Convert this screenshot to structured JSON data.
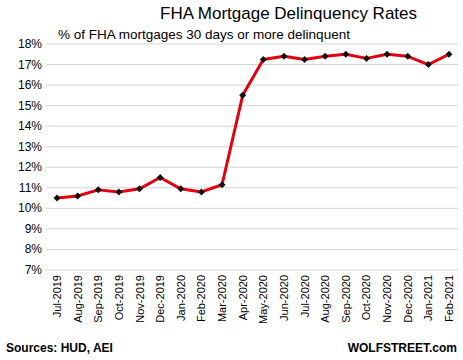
{
  "chart_data": {
    "type": "line",
    "title": "FHA Mortgage Delinquency Rates",
    "subtitle": "% of FHA mortgages 30 days or more delinquent",
    "categories": [
      "Jul-2019",
      "Aug-2019",
      "Sep-2019",
      "Oct-2019",
      "Nov-2019",
      "Dec-2019",
      "Jan-2020",
      "Feb-2020",
      "Mar-2020",
      "Apr-2020",
      "May-2020",
      "Jun-2020",
      "Jul-2020",
      "Aug-2020",
      "Sep-2020",
      "Oct-2020",
      "Nov-2020",
      "Dec-2020",
      "Jan-2021",
      "Feb-2021"
    ],
    "values": [
      10.5,
      10.6,
      10.9,
      10.8,
      10.95,
      11.5,
      10.95,
      10.8,
      11.15,
      15.5,
      17.25,
      17.4,
      17.25,
      17.4,
      17.5,
      17.3,
      17.5,
      17.4,
      17.0,
      17.5
    ],
    "color": "#e3000f",
    "marker": "diamond",
    "ylim": [
      7,
      18
    ],
    "yticks": [
      {
        "value": 7,
        "label": "7%"
      },
      {
        "value": 8,
        "label": "8%"
      },
      {
        "value": 9,
        "label": "9%"
      },
      {
        "value": 10,
        "label": "10%"
      },
      {
        "value": 11,
        "label": "11%"
      },
      {
        "value": 12,
        "label": "12%"
      },
      {
        "value": 13,
        "label": "13%"
      },
      {
        "value": 14,
        "label": "14%"
      },
      {
        "value": 15,
        "label": "15%"
      },
      {
        "value": 16,
        "label": "16%"
      },
      {
        "value": 17,
        "label": "17%"
      },
      {
        "value": 18,
        "label": "18%"
      }
    ],
    "grid": true,
    "annotations": [
      "Sources: HUD, AEI",
      "WOLFSTREET.com"
    ]
  }
}
